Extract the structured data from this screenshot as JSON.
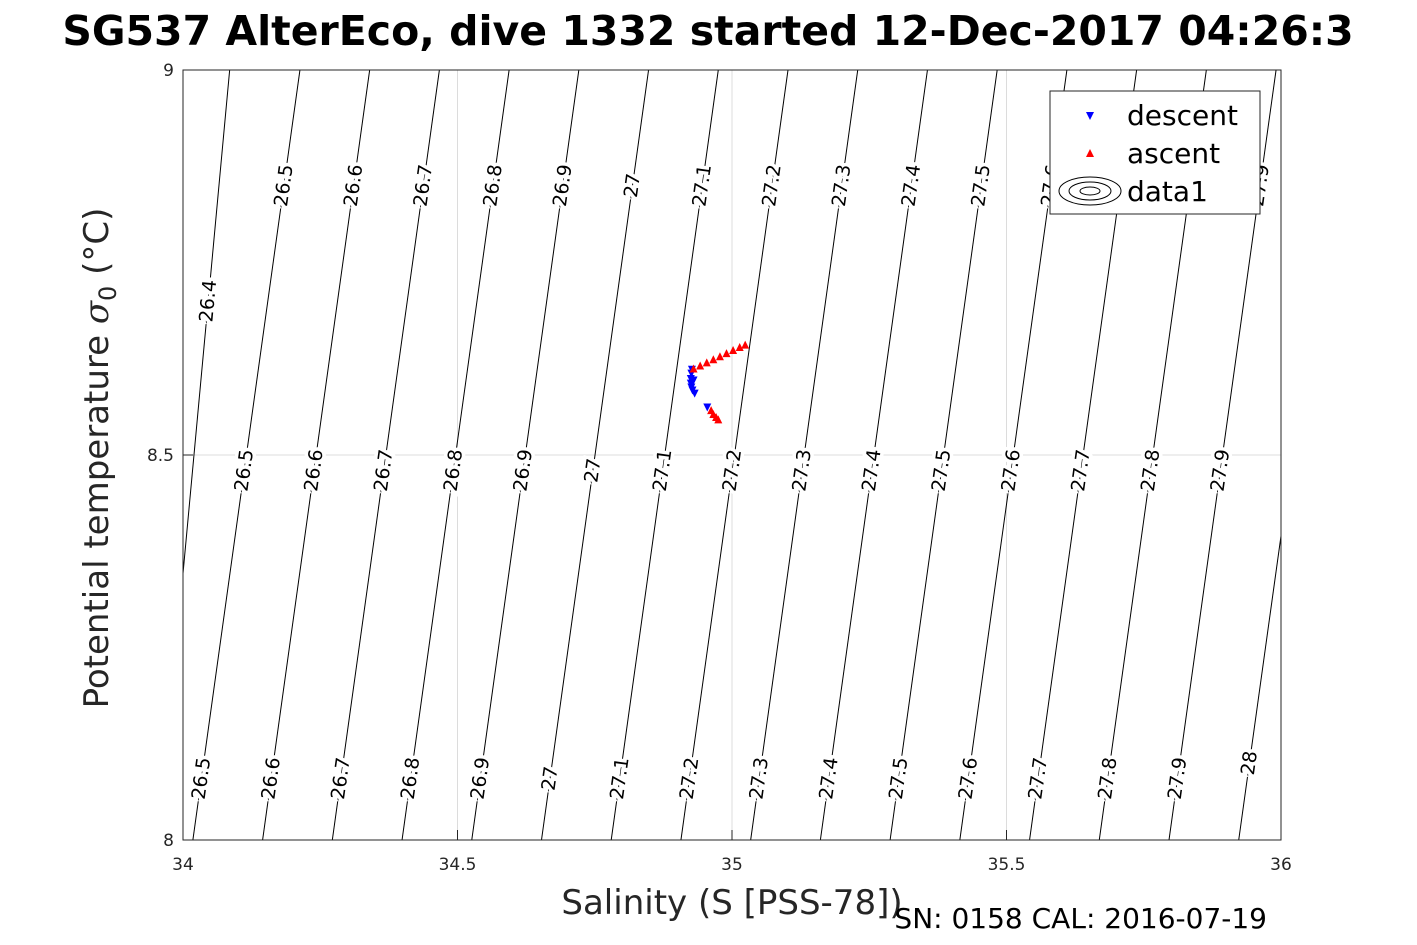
{
  "chart_data": {
    "type": "scatter",
    "title": "SG537 AlterEco, dive 1332 started 12-Dec-2017 04:26:3",
    "xlabel": "Salinity (S [PSS-78])",
    "ylabel_main": "Potential temperature ",
    "ylabel_sigma": "σ",
    "ylabel_sub": "0",
    "ylabel_unit": " (°C)",
    "xlim": [
      34,
      36
    ],
    "ylim": [
      8,
      9
    ],
    "x_ticks": [
      "34",
      "34.5",
      "35",
      "35.5",
      "36"
    ],
    "y_ticks": [
      "8",
      "8.5",
      "9"
    ],
    "grid": true,
    "legend_position": "top-right",
    "legend": [
      "descent",
      "ascent",
      "data1"
    ],
    "series": [
      {
        "name": "descent",
        "color": "#0000ff",
        "marker": "triangle-down",
        "points": [
          [
            34.927,
            8.612
          ],
          [
            34.926,
            8.607
          ],
          [
            34.925,
            8.6
          ],
          [
            34.925,
            8.594
          ],
          [
            34.926,
            8.589
          ],
          [
            34.928,
            8.585
          ],
          [
            34.932,
            8.581
          ],
          [
            34.93,
            8.598
          ],
          [
            34.955,
            8.563
          ]
        ]
      },
      {
        "name": "ascent",
        "color": "#ff0000",
        "marker": "triangle-up",
        "points": [
          [
            34.93,
            8.611
          ],
          [
            34.942,
            8.615
          ],
          [
            34.954,
            8.619
          ],
          [
            34.966,
            8.623
          ],
          [
            34.978,
            8.627
          ],
          [
            34.99,
            8.631
          ],
          [
            35.002,
            8.635
          ],
          [
            35.014,
            8.639
          ],
          [
            35.024,
            8.642
          ],
          [
            34.962,
            8.557
          ],
          [
            34.966,
            8.552
          ],
          [
            34.971,
            8.548
          ],
          [
            34.975,
            8.545
          ]
        ]
      }
    ],
    "isopycnals": [
      {
        "label": "26.4",
        "x8": 33.955,
        "x9": 34.085,
        "labels_at": [
          8.7
        ]
      },
      {
        "label": "26.5",
        "x8": 34.018,
        "x9": 34.213,
        "labels_at": [
          8.08,
          8.48,
          8.85
        ]
      },
      {
        "label": "26.6",
        "x8": 34.145,
        "x9": 34.34,
        "labels_at": [
          8.08,
          8.48,
          8.85
        ]
      },
      {
        "label": "26.7",
        "x8": 34.272,
        "x9": 34.467,
        "labels_at": [
          8.08,
          8.48,
          8.85
        ]
      },
      {
        "label": "26.8",
        "x8": 34.399,
        "x9": 34.594,
        "labels_at": [
          8.08,
          8.48,
          8.85
        ]
      },
      {
        "label": "26.9",
        "x8": 34.526,
        "x9": 34.721,
        "labels_at": [
          8.08,
          8.48,
          8.85
        ]
      },
      {
        "label": "27",
        "x8": 34.653,
        "x9": 34.848,
        "labels_at": [
          8.08,
          8.48,
          8.85
        ]
      },
      {
        "label": "27.1",
        "x8": 34.78,
        "x9": 34.975,
        "labels_at": [
          8.08,
          8.48,
          8.85
        ]
      },
      {
        "label": "27.2",
        "x8": 34.907,
        "x9": 35.102,
        "labels_at": [
          8.08,
          8.48,
          8.85
        ]
      },
      {
        "label": "27.3",
        "x8": 35.034,
        "x9": 35.229,
        "labels_at": [
          8.08,
          8.48,
          8.85
        ]
      },
      {
        "label": "27.4",
        "x8": 35.161,
        "x9": 35.356,
        "labels_at": [
          8.08,
          8.48,
          8.85
        ]
      },
      {
        "label": "27.5",
        "x8": 35.288,
        "x9": 35.483,
        "labels_at": [
          8.08,
          8.48,
          8.85
        ]
      },
      {
        "label": "27.6",
        "x8": 35.415,
        "x9": 35.61,
        "labels_at": [
          8.08,
          8.48,
          8.85
        ]
      },
      {
        "label": "27.7",
        "x8": 35.542,
        "x9": 35.737,
        "labels_at": [
          8.08,
          8.48,
          8.85
        ]
      },
      {
        "label": "27.8",
        "x8": 35.669,
        "x9": 35.864,
        "labels_at": [
          8.08,
          8.48,
          8.85
        ]
      },
      {
        "label": "27.9",
        "x8": 35.796,
        "x9": 35.991,
        "labels_at": [
          8.08,
          8.48,
          8.85
        ]
      },
      {
        "label": "28",
        "x8": 35.923,
        "x9": 36.118,
        "labels_at": [
          8.1
        ]
      }
    ]
  },
  "footer": "SN: 0158  CAL: 2016-07-19"
}
